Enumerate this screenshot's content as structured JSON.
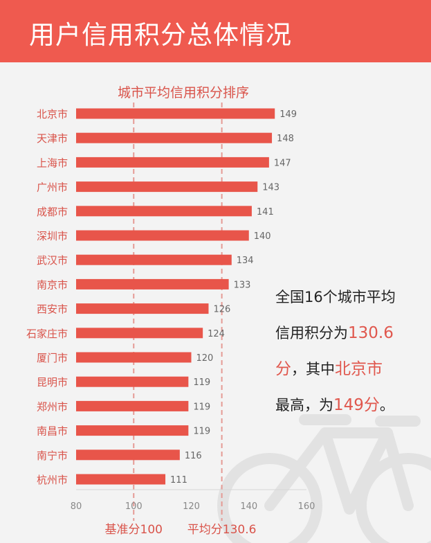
{
  "title": "用户信用积分总体情况",
  "colors": {
    "header": "#ef5a4f",
    "bar": "#e8554a",
    "label": "#d9534a",
    "value": "#666666",
    "refline": "#e59a94",
    "watermark": "#e2e2e2"
  },
  "icon": "bicycle-watermark-icon",
  "chart_data": {
    "type": "bar",
    "orientation": "horizontal",
    "title": "城市平均信用积分排序",
    "categories": [
      "北京市",
      "天津市",
      "上海市",
      "广州市",
      "成都市",
      "深圳市",
      "武汉市",
      "南京市",
      "西安市",
      "石家庄市",
      "厦门市",
      "昆明市",
      "郑州市",
      "南昌市",
      "南宁市",
      "杭州市"
    ],
    "values": [
      149,
      148,
      147,
      143,
      141,
      140,
      134,
      133,
      126,
      124,
      120,
      119,
      119,
      119,
      116,
      111
    ],
    "xlim": [
      80,
      160
    ],
    "xticks": [
      80,
      100,
      120,
      140,
      160
    ],
    "grid": false,
    "legend": "none",
    "reference_lines": [
      {
        "value": 100,
        "label": "基准分100"
      },
      {
        "value": 130.6,
        "label": "平均分130.6"
      }
    ]
  },
  "summary": {
    "line1": "全国16个城市平均",
    "line2_pre": "信用积分为",
    "line2_hl": "130.6",
    "line3_hl1": "分",
    "line3_mid": "，其中",
    "line3_hl2": "北京市",
    "line4_pre": "最高，为",
    "line4_hl": "149分",
    "line4_post": "。"
  }
}
